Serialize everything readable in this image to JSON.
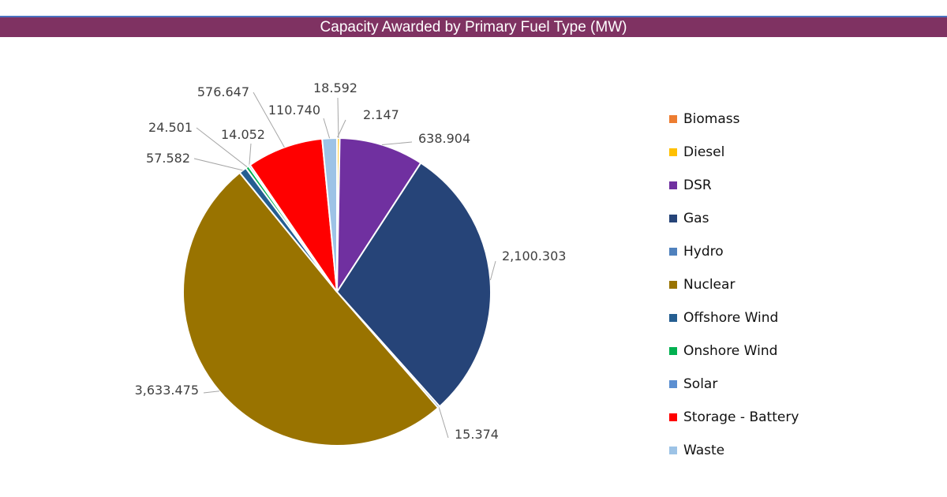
{
  "header": {
    "title": "Capacity Awarded by Primary Fuel Type (MW)"
  },
  "chart_data": {
    "type": "pie",
    "title": "Capacity Awarded by Primary Fuel Type (MW)",
    "legend_position": "right",
    "slices": [
      {
        "name": "Biomass",
        "value": 2.147,
        "label": "2.147",
        "color": "#ed7d31"
      },
      {
        "name": "Diesel",
        "value": 18.592,
        "label": "18.592",
        "color": "#ffc000"
      },
      {
        "name": "DSR",
        "value": 638.904,
        "label": "638.904",
        "color": "#7030a0"
      },
      {
        "name": "Gas",
        "value": 2100.303,
        "label": "2,100.303",
        "color": "#264478"
      },
      {
        "name": "Hydro",
        "value": 15.374,
        "label": "15.374",
        "color": "#4f81bd"
      },
      {
        "name": "Nuclear",
        "value": 3633.475,
        "label": "3,633.475",
        "color": "#997300"
      },
      {
        "name": "Offshore Wind",
        "value": 57.582,
        "label": "57.582",
        "color": "#255e91"
      },
      {
        "name": "Onshore Wind",
        "value": 24.501,
        "label": "24.501",
        "color": "#00b050"
      },
      {
        "name": "Solar",
        "value": 14.052,
        "label": "14.052",
        "color": "#5b8fd1"
      },
      {
        "name": "Storage - Battery",
        "value": 576.647,
        "label": "576.647",
        "color": "#ff0000"
      },
      {
        "name": "Waste",
        "value": 110.74,
        "label": "110.740",
        "color": "#9dc3e6"
      }
    ]
  }
}
